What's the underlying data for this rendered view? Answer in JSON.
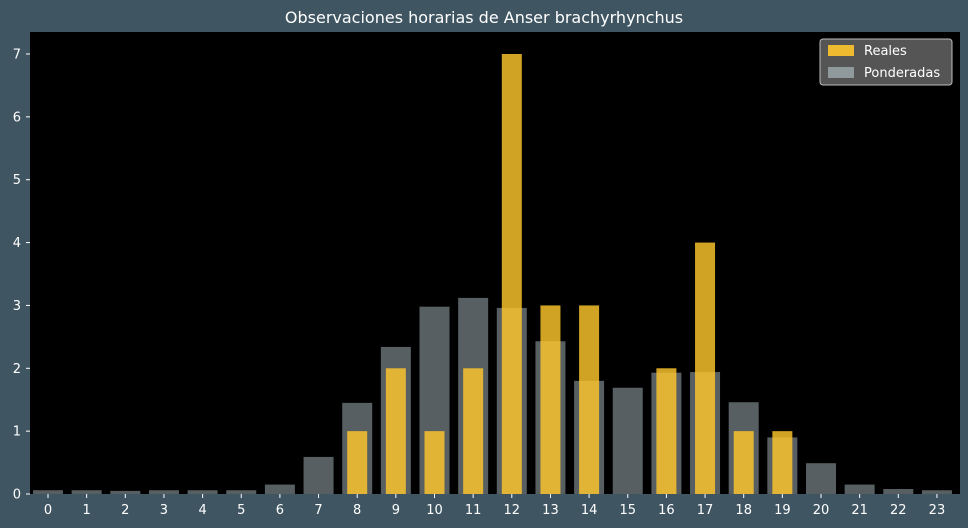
{
  "chart_data": {
    "type": "bar",
    "title": "Observaciones horarias de Anser brachyrhynchus",
    "xlabel": "",
    "ylabel": "",
    "categories": [
      "0",
      "1",
      "2",
      "3",
      "4",
      "5",
      "6",
      "7",
      "8",
      "9",
      "10",
      "11",
      "12",
      "13",
      "14",
      "15",
      "16",
      "17",
      "18",
      "19",
      "20",
      "21",
      "22",
      "23"
    ],
    "series": [
      {
        "name": "Reales",
        "color": "#ffc72c",
        "values": [
          0,
          0,
          0,
          0,
          0,
          0,
          0,
          0,
          1,
          2,
          1,
          2,
          7,
          3,
          3,
          0,
          2,
          4,
          1,
          1,
          0,
          0,
          0,
          0
        ]
      },
      {
        "name": "Ponderadas",
        "color": "#b8c7cc",
        "values": [
          0.06,
          0.06,
          0.05,
          0.06,
          0.06,
          0.06,
          0.15,
          0.59,
          1.45,
          2.34,
          2.98,
          3.12,
          2.96,
          2.43,
          1.8,
          1.69,
          1.93,
          1.94,
          1.46,
          0.9,
          0.49,
          0.15,
          0.08,
          0.06
        ]
      }
    ],
    "ylim": [
      0,
      7.35
    ],
    "yticks": [
      0,
      1,
      2,
      3,
      4,
      5,
      6,
      7
    ],
    "grid": false,
    "legend": "top-right",
    "colors": {
      "background": "#3f5562",
      "plot_background": "#000000",
      "text": "#ffffff"
    }
  }
}
